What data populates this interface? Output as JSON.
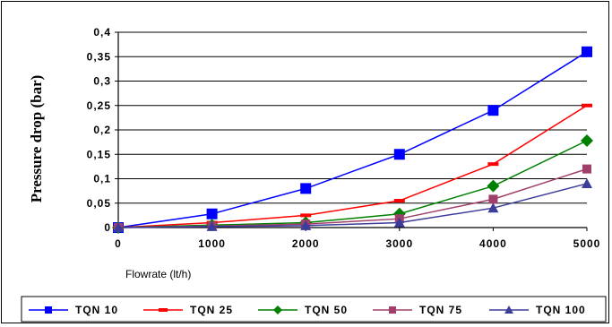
{
  "chart_data": {
    "type": "line",
    "title": "",
    "xlabel": "Flowrate (lt/h)",
    "ylabel": "Pressure drop (bar)",
    "x": [
      0,
      1000,
      2000,
      3000,
      4000,
      5000
    ],
    "x_tick_labels": [
      "0",
      "1000",
      "2000",
      "3000",
      "4000",
      "5000"
    ],
    "y_tick_labels": [
      "0",
      "0,05",
      "0,1",
      "0,15",
      "0,2",
      "0,25",
      "0,3",
      "0,35",
      "0,4"
    ],
    "xlim": [
      0,
      5000
    ],
    "ylim": [
      0,
      0.4
    ],
    "grid": "horizontal",
    "legend_position": "bottom",
    "series": [
      {
        "name": "TQN 10",
        "color": "#0000ff",
        "marker": "square",
        "values": [
          0,
          0.028,
          0.08,
          0.15,
          0.24,
          0.36
        ]
      },
      {
        "name": "TQN 25",
        "color": "#ff0000",
        "marker": "dash",
        "values": [
          0,
          0.01,
          0.025,
          0.055,
          0.13,
          0.25
        ]
      },
      {
        "name": "TQN 50",
        "color": "#008000",
        "marker": "diamond",
        "values": [
          0,
          0.005,
          0.01,
          0.028,
          0.085,
          0.178
        ]
      },
      {
        "name": "TQN 75",
        "color": "#a0406a",
        "marker": "square",
        "values": [
          0,
          0.003,
          0.007,
          0.018,
          0.058,
          0.12
        ]
      },
      {
        "name": "TQN 100",
        "color": "#3c3c9a",
        "marker": "triangle",
        "values": [
          0,
          0.002,
          0.004,
          0.01,
          0.04,
          0.09
        ]
      }
    ]
  }
}
